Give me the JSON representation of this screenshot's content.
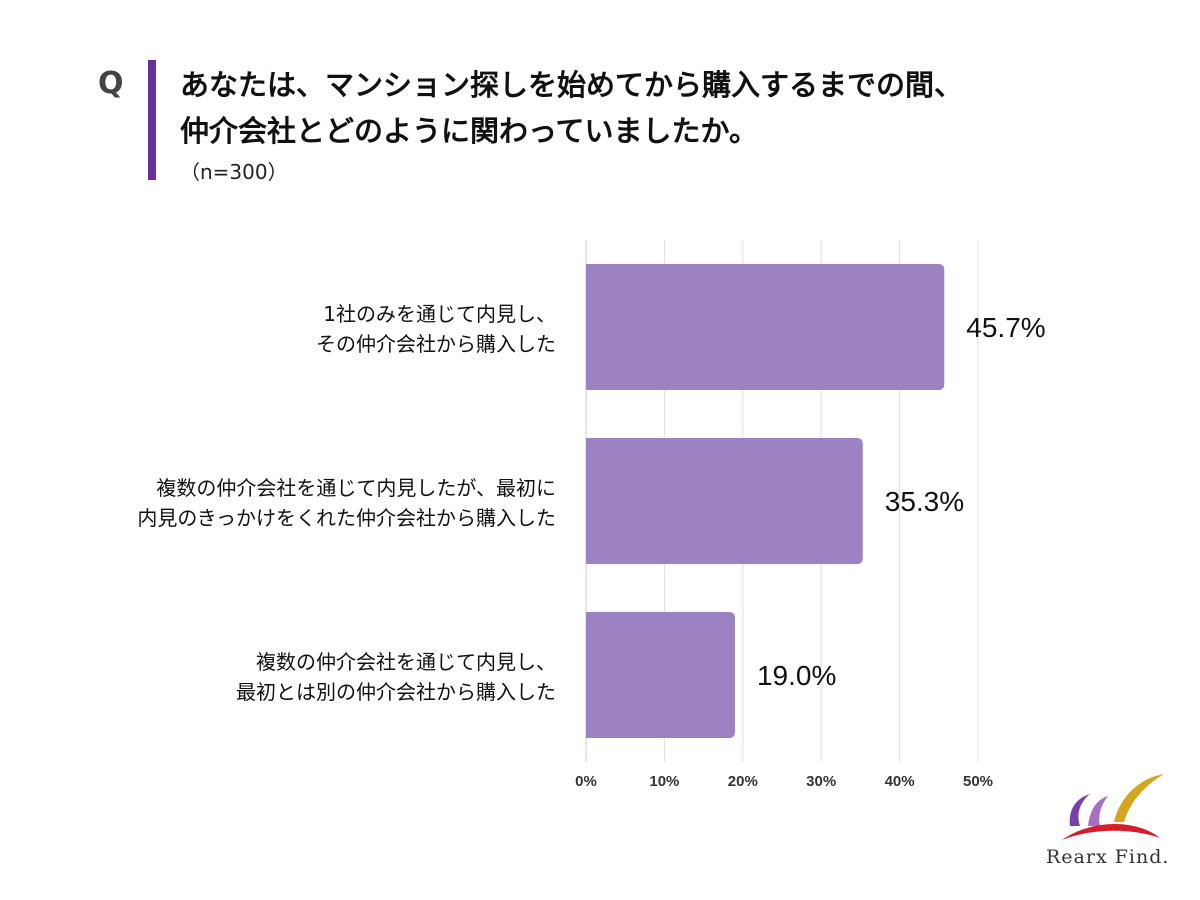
{
  "question": {
    "mark": "Q",
    "title_lines": [
      "あなたは、マンション探しを始めてから購入するまでの間、",
      "仲介会社とどのように関わっていましたか。"
    ],
    "sample": "（n=300）"
  },
  "chart_data": {
    "type": "bar",
    "orientation": "horizontal",
    "categories": [
      [
        "1社のみを通じて内見し、",
        "その仲介会社から購入した"
      ],
      [
        "複数の仲介会社を通じて内見したが、最初に",
        "内見のきっかけをくれた仲介会社から購入した"
      ],
      [
        "複数の仲介会社を通じて内見し、",
        "最初とは別の仲介会社から購入した"
      ]
    ],
    "values": [
      45.7,
      35.3,
      19.0
    ],
    "value_labels": [
      "45.7%",
      "35.3%",
      "19.0%"
    ],
    "xlim": [
      0,
      50
    ],
    "ticks": [
      0,
      10,
      20,
      30,
      40,
      50
    ],
    "tick_labels": [
      "0%",
      "10%",
      "20%",
      "30%",
      "40%",
      "50%"
    ],
    "grid": true,
    "bar_color": "#9d82c3"
  },
  "brand": {
    "name": "Rearx Find.",
    "colors": {
      "accent": "#6a2da0",
      "red": "#d41f2a",
      "gold": "#d4a520",
      "purple": "#7a3fa8"
    }
  }
}
